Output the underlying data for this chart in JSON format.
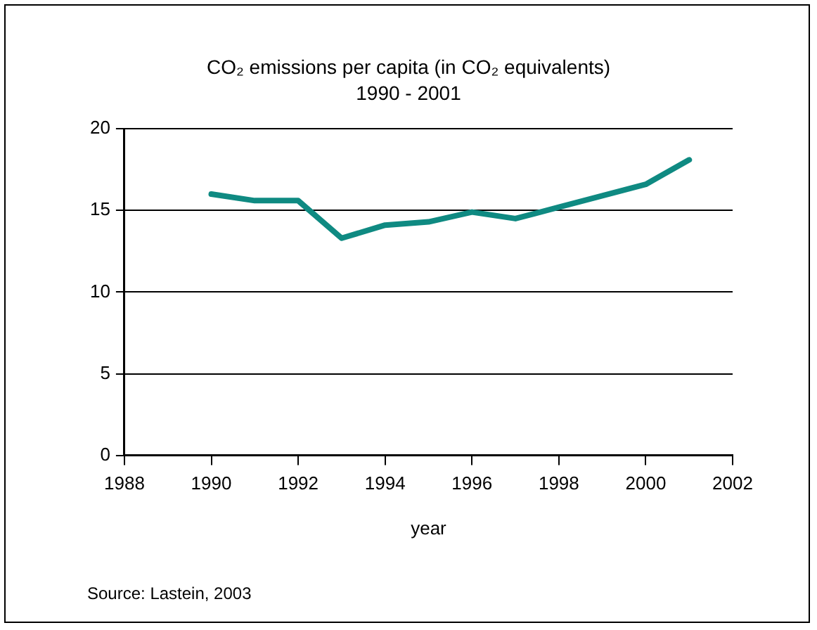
{
  "chart_data": {
    "type": "line",
    "title": "CO₂ emissions per capita (in CO₂ equivalents)",
    "subtitle": "1990 - 2001",
    "xlabel": "year",
    "x": [
      1990,
      1991,
      1992,
      1993,
      1994,
      1995,
      1996,
      1997,
      1998,
      1999,
      2000,
      2001
    ],
    "series": [
      {
        "color": "#0f8a82",
        "values": [
          16.0,
          15.6,
          15.6,
          13.3,
          14.1,
          14.3,
          14.9,
          14.5,
          15.2,
          15.9,
          16.6,
          18.1
        ]
      }
    ],
    "xlim": [
      1988,
      2002
    ],
    "xticks": [
      1988,
      1990,
      1992,
      1994,
      1996,
      1998,
      2000,
      2002
    ],
    "ylim": [
      0,
      20
    ],
    "yticks": [
      0,
      5,
      10,
      15,
      20
    ],
    "grid": "y",
    "legend": false,
    "marker": "none",
    "line_style": "solid",
    "annotations": [
      "Source: Lastein, 2003"
    ]
  }
}
